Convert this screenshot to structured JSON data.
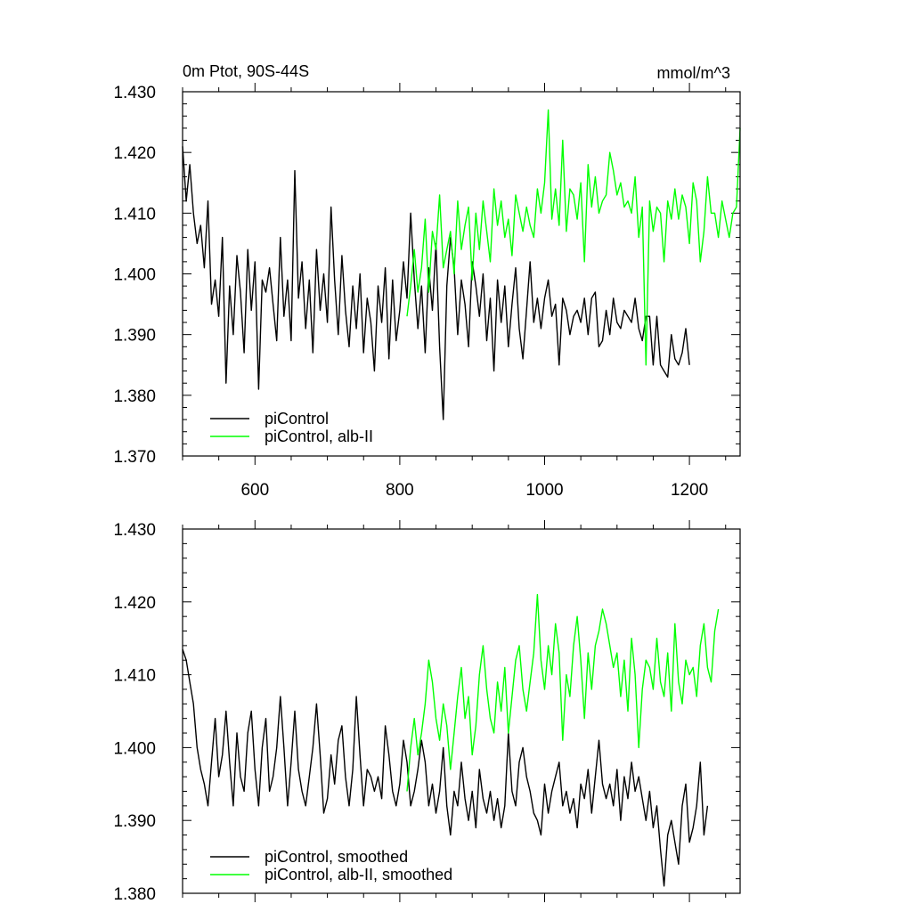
{
  "chart_data": [
    {
      "type": "line",
      "title_left": "0m Ptot, 90S-44S",
      "title_right": "mmol/m^3",
      "xlim": [
        500,
        1270
      ],
      "ylim": [
        1.37,
        1.43
      ],
      "xticks": [
        600,
        800,
        1000,
        1200
      ],
      "xtick_labels": [
        "600",
        "800",
        "1000",
        "1200"
      ],
      "yticks": [
        1.37,
        1.38,
        1.39,
        1.4,
        1.41,
        1.42,
        1.43
      ],
      "ytick_labels": [
        "1.370",
        "1.380",
        "1.390",
        "1.400",
        "1.410",
        "1.420",
        "1.430"
      ],
      "legend_position": "bottom-left",
      "series": [
        {
          "name": "piControl",
          "color": "#000000",
          "x_start": 500,
          "x_step": 5,
          "values": [
            1.421,
            1.412,
            1.418,
            1.41,
            1.405,
            1.408,
            1.401,
            1.412,
            1.395,
            1.399,
            1.393,
            1.406,
            1.382,
            1.398,
            1.39,
            1.403,
            1.397,
            1.387,
            1.404,
            1.394,
            1.402,
            1.381,
            1.399,
            1.397,
            1.401,
            1.395,
            1.389,
            1.406,
            1.393,
            1.399,
            1.389,
            1.417,
            1.396,
            1.402,
            1.391,
            1.399,
            1.387,
            1.404,
            1.394,
            1.4,
            1.392,
            1.411,
            1.399,
            1.39,
            1.403,
            1.394,
            1.388,
            1.398,
            1.391,
            1.4,
            1.387,
            1.396,
            1.392,
            1.384,
            1.398,
            1.392,
            1.401,
            1.386,
            1.399,
            1.389,
            1.394,
            1.402,
            1.396,
            1.41,
            1.399,
            1.391,
            1.398,
            1.387,
            1.401,
            1.394,
            1.405,
            1.388,
            1.376,
            1.398,
            1.406,
            1.401,
            1.39,
            1.399,
            1.395,
            1.388,
            1.402,
            1.398,
            1.393,
            1.4,
            1.389,
            1.396,
            1.384,
            1.399,
            1.392,
            1.398,
            1.388,
            1.395,
            1.401,
            1.391,
            1.386,
            1.394,
            1.402,
            1.392,
            1.396,
            1.391,
            1.396,
            1.399,
            1.393,
            1.395,
            1.385,
            1.396,
            1.394,
            1.39,
            1.393,
            1.394,
            1.392,
            1.396,
            1.39,
            1.396,
            1.397,
            1.388,
            1.389,
            1.394,
            1.39,
            1.396,
            1.392,
            1.391,
            1.394,
            1.393,
            1.392,
            1.396,
            1.391,
            1.389,
            1.393,
            1.393,
            1.385,
            1.393,
            1.385,
            1.384,
            1.383,
            1.39,
            1.386,
            1.385,
            1.387,
            1.391,
            1.385
          ],
          "note_x_end": 1200
        },
        {
          "name": "piControl, alb-II",
          "color": "#00ff00",
          "x_start": 810,
          "x_step": 5,
          "values": [
            1.393,
            1.398,
            1.404,
            1.397,
            1.401,
            1.409,
            1.397,
            1.407,
            1.404,
            1.413,
            1.401,
            1.404,
            1.407,
            1.4,
            1.412,
            1.404,
            1.408,
            1.411,
            1.399,
            1.41,
            1.404,
            1.412,
            1.407,
            1.402,
            1.414,
            1.408,
            1.412,
            1.406,
            1.409,
            1.403,
            1.413,
            1.41,
            1.407,
            1.411,
            1.408,
            1.406,
            1.414,
            1.41,
            1.415,
            1.427,
            1.409,
            1.414,
            1.408,
            1.422,
            1.407,
            1.414,
            1.413,
            1.409,
            1.415,
            1.402,
            1.418,
            1.411,
            1.416,
            1.41,
            1.412,
            1.413,
            1.42,
            1.417,
            1.413,
            1.415,
            1.411,
            1.412,
            1.41,
            1.416,
            1.406,
            1.411,
            1.385,
            1.412,
            1.407,
            1.411,
            1.41,
            1.402,
            1.412,
            1.409,
            1.414,
            1.409,
            1.413,
            1.411,
            1.405,
            1.415,
            1.412,
            1.402,
            1.407,
            1.416,
            1.41,
            1.41,
            1.406,
            1.412,
            1.409,
            1.406,
            1.41,
            1.411,
            1.424
          ]
        }
      ]
    },
    {
      "type": "line",
      "xlim": [
        500,
        1270
      ],
      "ylim": [
        1.38,
        1.43
      ],
      "xticks": [
        600,
        800,
        1000,
        1200
      ],
      "yticks": [
        1.38,
        1.39,
        1.4,
        1.41,
        1.42,
        1.43
      ],
      "ytick_labels": [
        "1.380",
        "1.390",
        "1.400",
        "1.410",
        "1.420",
        "1.430"
      ],
      "legend_position": "bottom-left",
      "series": [
        {
          "name": "piControl, smoothed",
          "color": "#000000",
          "x_start": 500,
          "x_step": 5,
          "values": [
            1.4135,
            1.412,
            1.409,
            1.406,
            1.4,
            1.397,
            1.395,
            1.392,
            1.398,
            1.404,
            1.396,
            1.399,
            1.405,
            1.398,
            1.392,
            1.402,
            1.396,
            1.394,
            1.402,
            1.405,
            1.397,
            1.392,
            1.4,
            1.404,
            1.394,
            1.396,
            1.4,
            1.407,
            1.4,
            1.392,
            1.398,
            1.405,
            1.397,
            1.394,
            1.392,
            1.396,
            1.4,
            1.406,
            1.399,
            1.391,
            1.393,
            1.399,
            1.395,
            1.401,
            1.403,
            1.396,
            1.392,
            1.397,
            1.407,
            1.399,
            1.392,
            1.397,
            1.396,
            1.394,
            1.396,
            1.393,
            1.403,
            1.399,
            1.394,
            1.392,
            1.395,
            1.401,
            1.398,
            1.392,
            1.394,
            1.397,
            1.401,
            1.398,
            1.392,
            1.395,
            1.391,
            1.394,
            1.4,
            1.392,
            1.388,
            1.394,
            1.392,
            1.398,
            1.393,
            1.39,
            1.394,
            1.389,
            1.397,
            1.393,
            1.391,
            1.394,
            1.39,
            1.393,
            1.389,
            1.392,
            1.402,
            1.394,
            1.392,
            1.398,
            1.4,
            1.396,
            1.394,
            1.391,
            1.39,
            1.388,
            1.395,
            1.391,
            1.394,
            1.396,
            1.398,
            1.392,
            1.394,
            1.391,
            1.393,
            1.389,
            1.395,
            1.393,
            1.397,
            1.391,
            1.396,
            1.401,
            1.395,
            1.393,
            1.395,
            1.392,
            1.397,
            1.39,
            1.396,
            1.393,
            1.398,
            1.394,
            1.396,
            1.393,
            1.39,
            1.394,
            1.389,
            1.392,
            1.386,
            1.381,
            1.388,
            1.39,
            1.387,
            1.384,
            1.392,
            1.395,
            1.387,
            1.389,
            1.392,
            1.398,
            1.388,
            1.392
          ]
        },
        {
          "name": "piControl, alb-II, smoothed",
          "color": "#00ff00",
          "x_start": 810,
          "x_step": 5,
          "values": [
            1.394,
            1.4,
            1.404,
            1.399,
            1.402,
            1.406,
            1.412,
            1.409,
            1.404,
            1.401,
            1.406,
            1.403,
            1.397,
            1.402,
            1.407,
            1.411,
            1.404,
            1.407,
            1.399,
            1.403,
            1.41,
            1.414,
            1.408,
            1.404,
            1.402,
            1.409,
            1.405,
            1.411,
            1.402,
            1.407,
            1.412,
            1.414,
            1.408,
            1.405,
            1.409,
            1.413,
            1.421,
            1.412,
            1.408,
            1.414,
            1.41,
            1.417,
            1.413,
            1.401,
            1.41,
            1.407,
            1.414,
            1.418,
            1.412,
            1.404,
            1.413,
            1.408,
            1.414,
            1.416,
            1.419,
            1.417,
            1.414,
            1.411,
            1.413,
            1.407,
            1.412,
            1.405,
            1.415,
            1.41,
            1.4,
            1.408,
            1.412,
            1.411,
            1.408,
            1.415,
            1.409,
            1.407,
            1.413,
            1.405,
            1.417,
            1.409,
            1.406,
            1.412,
            1.41,
            1.411,
            1.407,
            1.414,
            1.417,
            1.411,
            1.409,
            1.416,
            1.419
          ]
        }
      ]
    }
  ]
}
